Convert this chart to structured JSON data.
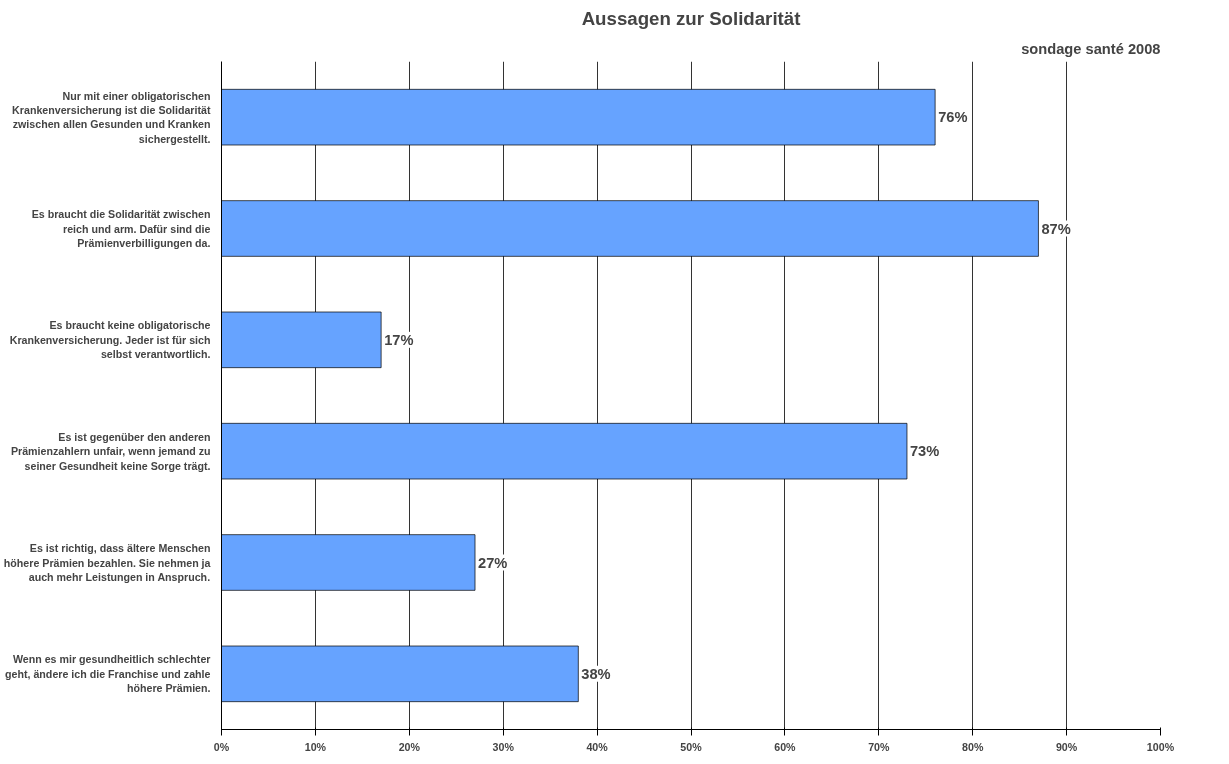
{
  "chart_data": {
    "type": "bar",
    "orientation": "horizontal",
    "title": "Aussagen zur Solidarität",
    "subtitle": "sondage santé 2008",
    "categories": [
      "Nur mit einer obligatorischen Krankenversicherung ist die Solidarität zwischen allen Gesunden und Kranken sichergestellt.",
      "Es braucht die Solidarität zwischen reich und arm. Dafür sind die Prämienverbilligungen da.",
      "Es braucht keine obligatorische Krankenversicherung. Jeder ist für sich selbst verantwortlich.",
      "Es ist gegenüber den anderen Prämienzahlern unfair, wenn jemand zu seiner Gesundheit keine Sorge trägt.",
      "Es ist richtig, dass ältere Menschen höhere Prämien bezahlen. Sie nehmen ja auch mehr Leistungen in Anspruch.",
      "Wenn es mir gesundheitlich schlechter geht, ändere ich die Franchise und zahle höhere Prämien."
    ],
    "values": [
      76,
      87,
      17,
      73,
      27,
      38
    ],
    "value_labels": [
      "76%",
      "87%",
      "17%",
      "73%",
      "27%",
      "38%"
    ],
    "color": "#66a3ff",
    "xlim": [
      0,
      100
    ],
    "xticks": [
      {
        "value": 0,
        "label": "0%"
      },
      {
        "value": 10,
        "label": "10%"
      },
      {
        "value": 20,
        "label": "20%"
      },
      {
        "value": 30,
        "label": "30%"
      },
      {
        "value": 40,
        "label": "40%"
      },
      {
        "value": 50,
        "label": "50%"
      },
      {
        "value": 60,
        "label": "60%"
      },
      {
        "value": 70,
        "label": "70%"
      },
      {
        "value": 80,
        "label": "80%"
      },
      {
        "value": 90,
        "label": "90%"
      },
      {
        "value": 100,
        "label": "100%"
      }
    ],
    "grid": "x"
  }
}
